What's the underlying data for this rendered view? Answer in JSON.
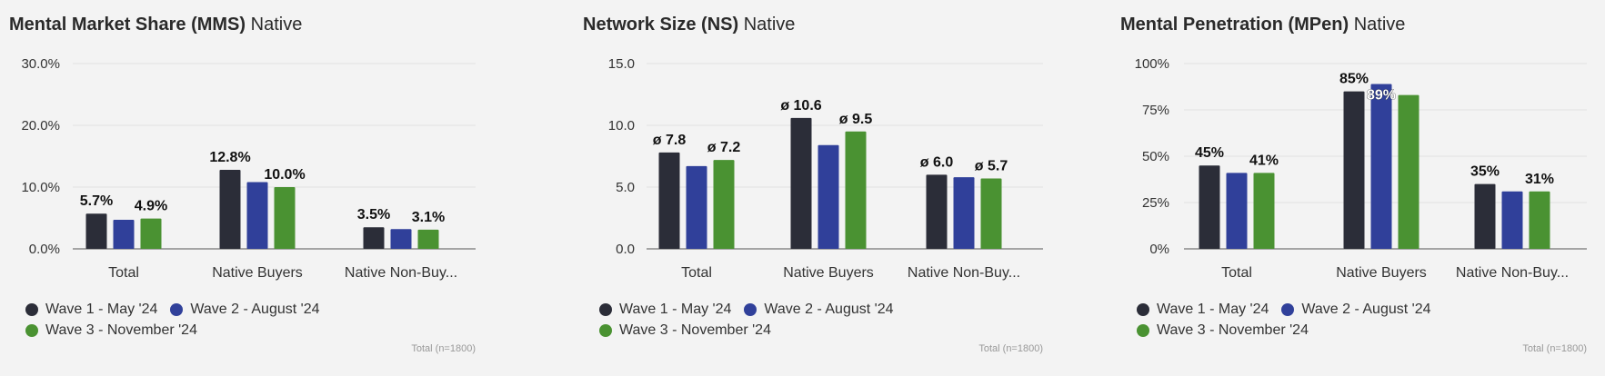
{
  "legend": {
    "wave1": {
      "label": "Wave 1 - May '24",
      "color": "#2b2d38"
    },
    "wave2": {
      "label": "Wave 2 - August '24",
      "color": "#30409a"
    },
    "wave3": {
      "label": "Wave 3 - November '24",
      "color": "#4a9232"
    }
  },
  "footnote": "Total (n=1800)",
  "chart_data": [
    {
      "type": "bar",
      "title_main": "Mental Market Share (MMS)",
      "title_sub": "Native",
      "categories": [
        "Total",
        "Native Buyers",
        "Native Non-Buy..."
      ],
      "series": [
        {
          "name": "Wave 1 - May '24",
          "values": [
            5.7,
            12.8,
            3.5
          ]
        },
        {
          "name": "Wave 2 - August '24",
          "values": [
            4.7,
            10.8,
            3.2
          ]
        },
        {
          "name": "Wave 3 - November '24",
          "values": [
            4.9,
            10.0,
            3.1
          ]
        }
      ],
      "ylim": [
        0,
        30
      ],
      "yticks": [
        0,
        10,
        20,
        30
      ],
      "ytick_labels": [
        "0.0%",
        "10.0%",
        "20.0%",
        "30.0%"
      ],
      "data_labels": [
        [
          "5.7%",
          "",
          "4.9%"
        ],
        [
          "12.8%",
          "",
          "10.0%"
        ],
        [
          "3.5%",
          "",
          "3.1%"
        ]
      ],
      "grid": true,
      "legend_position": "bottom-left"
    },
    {
      "type": "bar",
      "title_main": "Network Size (NS)",
      "title_sub": "Native",
      "categories": [
        "Total",
        "Native Buyers",
        "Native Non-Buy..."
      ],
      "series": [
        {
          "name": "Wave 1 - May '24",
          "values": [
            7.8,
            10.6,
            6.0
          ]
        },
        {
          "name": "Wave 2 - August '24",
          "values": [
            6.7,
            8.4,
            5.8
          ]
        },
        {
          "name": "Wave 3 - November '24",
          "values": [
            7.2,
            9.5,
            5.7
          ]
        }
      ],
      "ylim": [
        0,
        15
      ],
      "yticks": [
        0,
        5,
        10,
        15
      ],
      "ytick_labels": [
        "0.0",
        "5.0",
        "10.0",
        "15.0"
      ],
      "data_labels": [
        [
          "ø 7.8",
          "",
          "ø 7.2"
        ],
        [
          "ø 10.6",
          "",
          "ø 9.5"
        ],
        [
          "ø 6.0",
          "",
          "ø 5.7"
        ]
      ],
      "grid": true,
      "legend_position": "bottom-left"
    },
    {
      "type": "bar",
      "title_main": "Mental Penetration (MPen)",
      "title_sub": "Native",
      "categories": [
        "Total",
        "Native Buyers",
        "Native Non-Buy..."
      ],
      "series": [
        {
          "name": "Wave 1 - May '24",
          "values": [
            45,
            85,
            35
          ]
        },
        {
          "name": "Wave 2 - August '24",
          "values": [
            41,
            89,
            31
          ]
        },
        {
          "name": "Wave 3 - November '24",
          "values": [
            41,
            83,
            31
          ]
        }
      ],
      "ylim": [
        0,
        100
      ],
      "yticks": [
        0,
        25,
        50,
        75,
        100
      ],
      "ytick_labels": [
        "0%",
        "25%",
        "50%",
        "75%",
        "100%"
      ],
      "data_labels": [
        [
          "45%",
          "",
          "41%"
        ],
        [
          "85%",
          "89%",
          ""
        ],
        [
          "35%",
          "",
          "31%"
        ]
      ],
      "grid": true,
      "legend_position": "bottom-left"
    }
  ]
}
